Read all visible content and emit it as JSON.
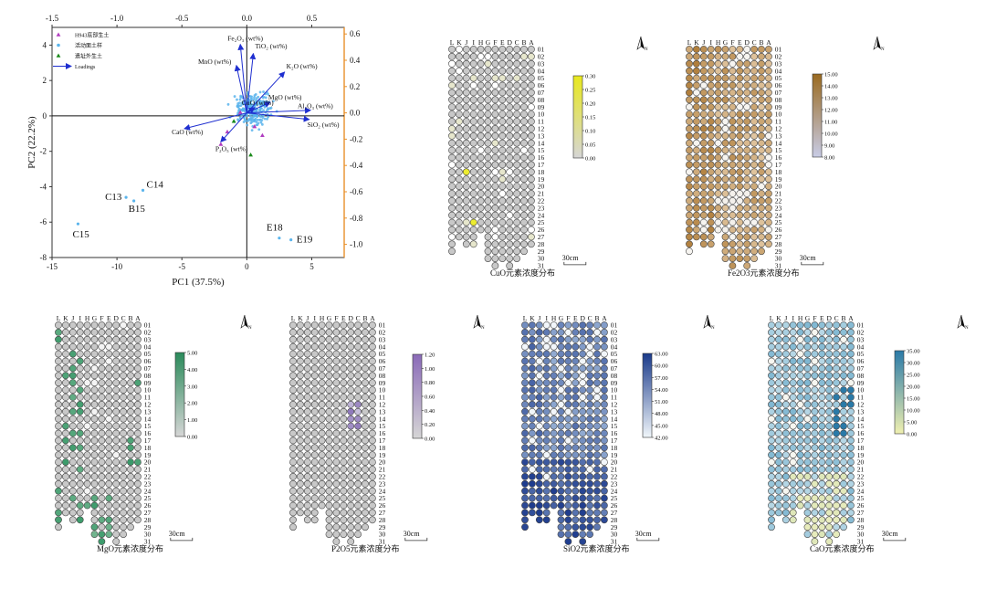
{
  "chart_data": [
    {
      "type": "scatter",
      "subtype": "pca-biplot",
      "xlabel": "PC1 (37.5%)",
      "ylabel": "PC2 (22.2%)",
      "xlim": [
        -15,
        7.5
      ],
      "ylim": [
        -8,
        5
      ],
      "x_ticks": [
        -15,
        -10,
        -5,
        0,
        5
      ],
      "y_ticks": [
        -8,
        -6,
        -4,
        -2,
        0,
        2,
        4
      ],
      "top_ticks": [
        -1.5,
        -1.0,
        -0.5,
        0.0,
        0.5
      ],
      "right_ticks": [
        -1.0,
        -0.8,
        -0.6,
        -0.4,
        -0.2,
        0.0,
        0.2,
        0.4,
        0.6
      ],
      "loading_xlim": [
        -1.5,
        0.75
      ],
      "loading_ylim": [
        -1.1,
        0.65
      ],
      "legend": [
        {
          "label": "H943底部生土",
          "marker": "triangle",
          "color": "#b03cc0"
        },
        {
          "label": "活动面土样",
          "marker": "circle",
          "color": "#5ab4ec"
        },
        {
          "label": "遗址外生土",
          "marker": "triangle",
          "color": "#1a8a1a"
        },
        {
          "label": "Loadings",
          "marker": "arrow",
          "color": "#1f2fd0"
        }
      ],
      "loadings": [
        {
          "name": "Fe2O3 (wt%)",
          "x": -0.05,
          "y": 0.52
        },
        {
          "name": "TiO2 (wt%)",
          "x": 0.05,
          "y": 0.45
        },
        {
          "name": "MnO (wt%)",
          "x": -0.08,
          "y": 0.36
        },
        {
          "name": "K2O (wt%)",
          "x": 0.29,
          "y": 0.31
        },
        {
          "name": "MgO (wt%)",
          "x": 0.18,
          "y": 0.08
        },
        {
          "name": "CuO (wt%)",
          "x": 0.06,
          "y": 0.04
        },
        {
          "name": "Al2O3 (wt%)",
          "x": 0.49,
          "y": 0.02
        },
        {
          "name": "SiO2 (wt%)",
          "x": 0.48,
          "y": -0.05
        },
        {
          "name": "CaO (wt%)",
          "x": -0.48,
          "y": -0.12
        },
        {
          "name": "P2O5 (wt%)",
          "x": -0.2,
          "y": -0.22
        }
      ],
      "labeled_points": [
        {
          "name": "C13",
          "x": -9.3,
          "y": -4.6
        },
        {
          "name": "C14",
          "x": -8.0,
          "y": -4.2
        },
        {
          "name": "B15",
          "x": -8.7,
          "y": -4.8
        },
        {
          "name": "C15",
          "x": -13.0,
          "y": -6.1
        },
        {
          "name": "E18",
          "x": 2.5,
          "y": -6.9
        },
        {
          "name": "E19",
          "x": 3.4,
          "y": -7.0
        }
      ]
    },
    {
      "type": "heatmap",
      "element": "CuO",
      "title": "CuO元素浓度分布",
      "colorbar": [
        "0.30",
        "0.25",
        "0.20",
        "0.15",
        "0.10",
        "0.05",
        "0.00"
      ],
      "color_max": "#e8e81e",
      "scale": "30cm"
    },
    {
      "type": "heatmap",
      "element": "Fe2O3",
      "title": "Fe2O3元素浓度分布",
      "colorbar": [
        "15.00",
        "14.00",
        "13.00",
        "12.00",
        "11.00",
        "10.00",
        "9.00",
        "8.00"
      ],
      "color_max": "#9a6a20",
      "color_min": "#c8cce6",
      "scale": "30cm"
    },
    {
      "type": "heatmap",
      "element": "MgO",
      "title": "MgO元素浓度分布",
      "colorbar": [
        "5.00",
        "4.00",
        "3.00",
        "2.00",
        "1.00",
        "0.00"
      ],
      "color_max": "#2a8a5a",
      "scale": "30cm"
    },
    {
      "type": "heatmap",
      "element": "P2O5",
      "title": "P2O5元素浓度分布",
      "colorbar": [
        "1.20",
        "1.00",
        "0.80",
        "0.60",
        "0.40",
        "0.20",
        "0.00"
      ],
      "color_max": "#8a6ab8",
      "scale": "30cm"
    },
    {
      "type": "heatmap",
      "element": "SiO2",
      "title": "SiO2元素浓度分布",
      "colorbar": [
        "63.00",
        "60.00",
        "57.00",
        "54.00",
        "51.00",
        "48.00",
        "45.00",
        "42.00"
      ],
      "color_max": "#1a3a8a",
      "color_min": "#f0f6fa",
      "scale": "30cm"
    },
    {
      "type": "heatmap",
      "element": "CaO",
      "title": "CaO元素浓度分布",
      "colorbar": [
        "35.00",
        "30.00",
        "25.00",
        "20.00",
        "15.00",
        "10.00",
        "5.00",
        "0.00"
      ],
      "color_max": "#2a7aa8",
      "color_min": "#f0f0b0",
      "scale": "30cm"
    }
  ],
  "grid_columns": [
    "L",
    "K",
    "J",
    "I",
    "H",
    "G",
    "F",
    "E",
    "D",
    "C",
    "B",
    "A"
  ],
  "grid_rows": [
    "01",
    "02",
    "03",
    "04",
    "05",
    "06",
    "07",
    "08",
    "09",
    "10",
    "11",
    "12",
    "13",
    "14",
    "15",
    "16",
    "17",
    "18",
    "19",
    "20",
    "21",
    "22",
    "23",
    "24",
    "25",
    "26",
    "27",
    "28",
    "29",
    "30",
    "31"
  ],
  "north_label": "N"
}
